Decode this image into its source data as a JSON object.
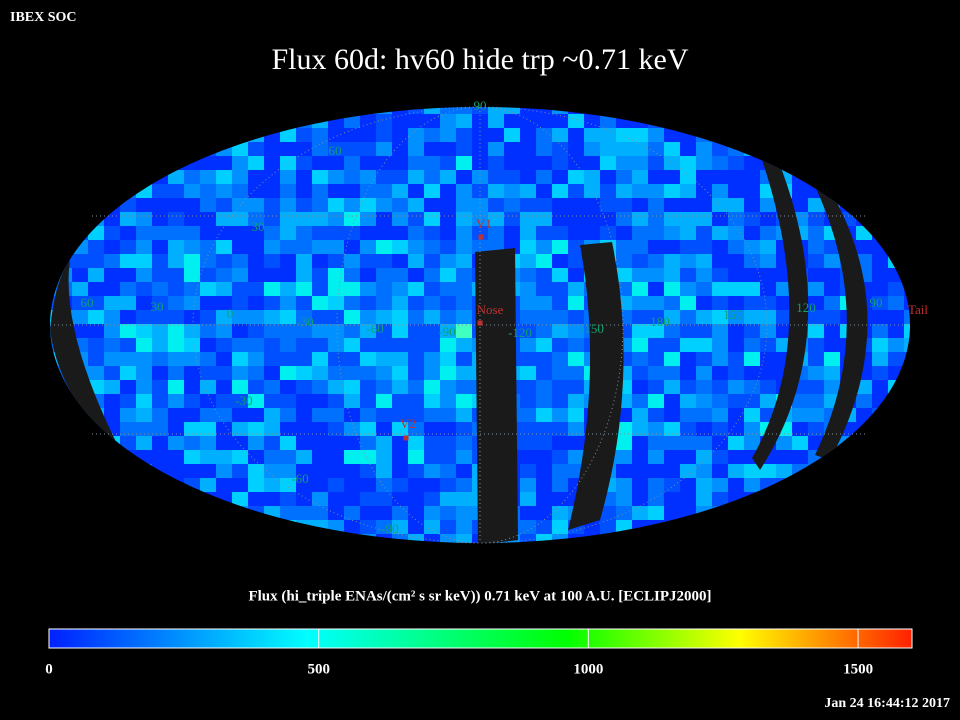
{
  "header": {
    "label": "IBEX SOC",
    "title": "Flux   60d: hv60 hide trp ~0.71 keV"
  },
  "map": {
    "latitude_labels": [
      "90",
      "60",
      "30",
      "-30",
      "-60",
      "-90"
    ],
    "longitude_labels": [
      "60",
      "30",
      "0",
      "-30",
      "-60",
      "-90",
      "-120",
      "-150",
      "180",
      "150",
      "120",
      "90"
    ],
    "markers": [
      "V1",
      "Nose",
      "V2",
      "Tail"
    ]
  },
  "colorbar": {
    "label": "Flux (hi_triple ENAs/(cm² s sr keV))  0.71 keV at 100 A.U. [ECLIPJ2000]",
    "range": [
      0,
      1600
    ],
    "ticks": [
      0,
      500,
      1000,
      1500
    ]
  },
  "footer": {
    "timestamp": "Jan 24 16:44:12 2017"
  }
}
